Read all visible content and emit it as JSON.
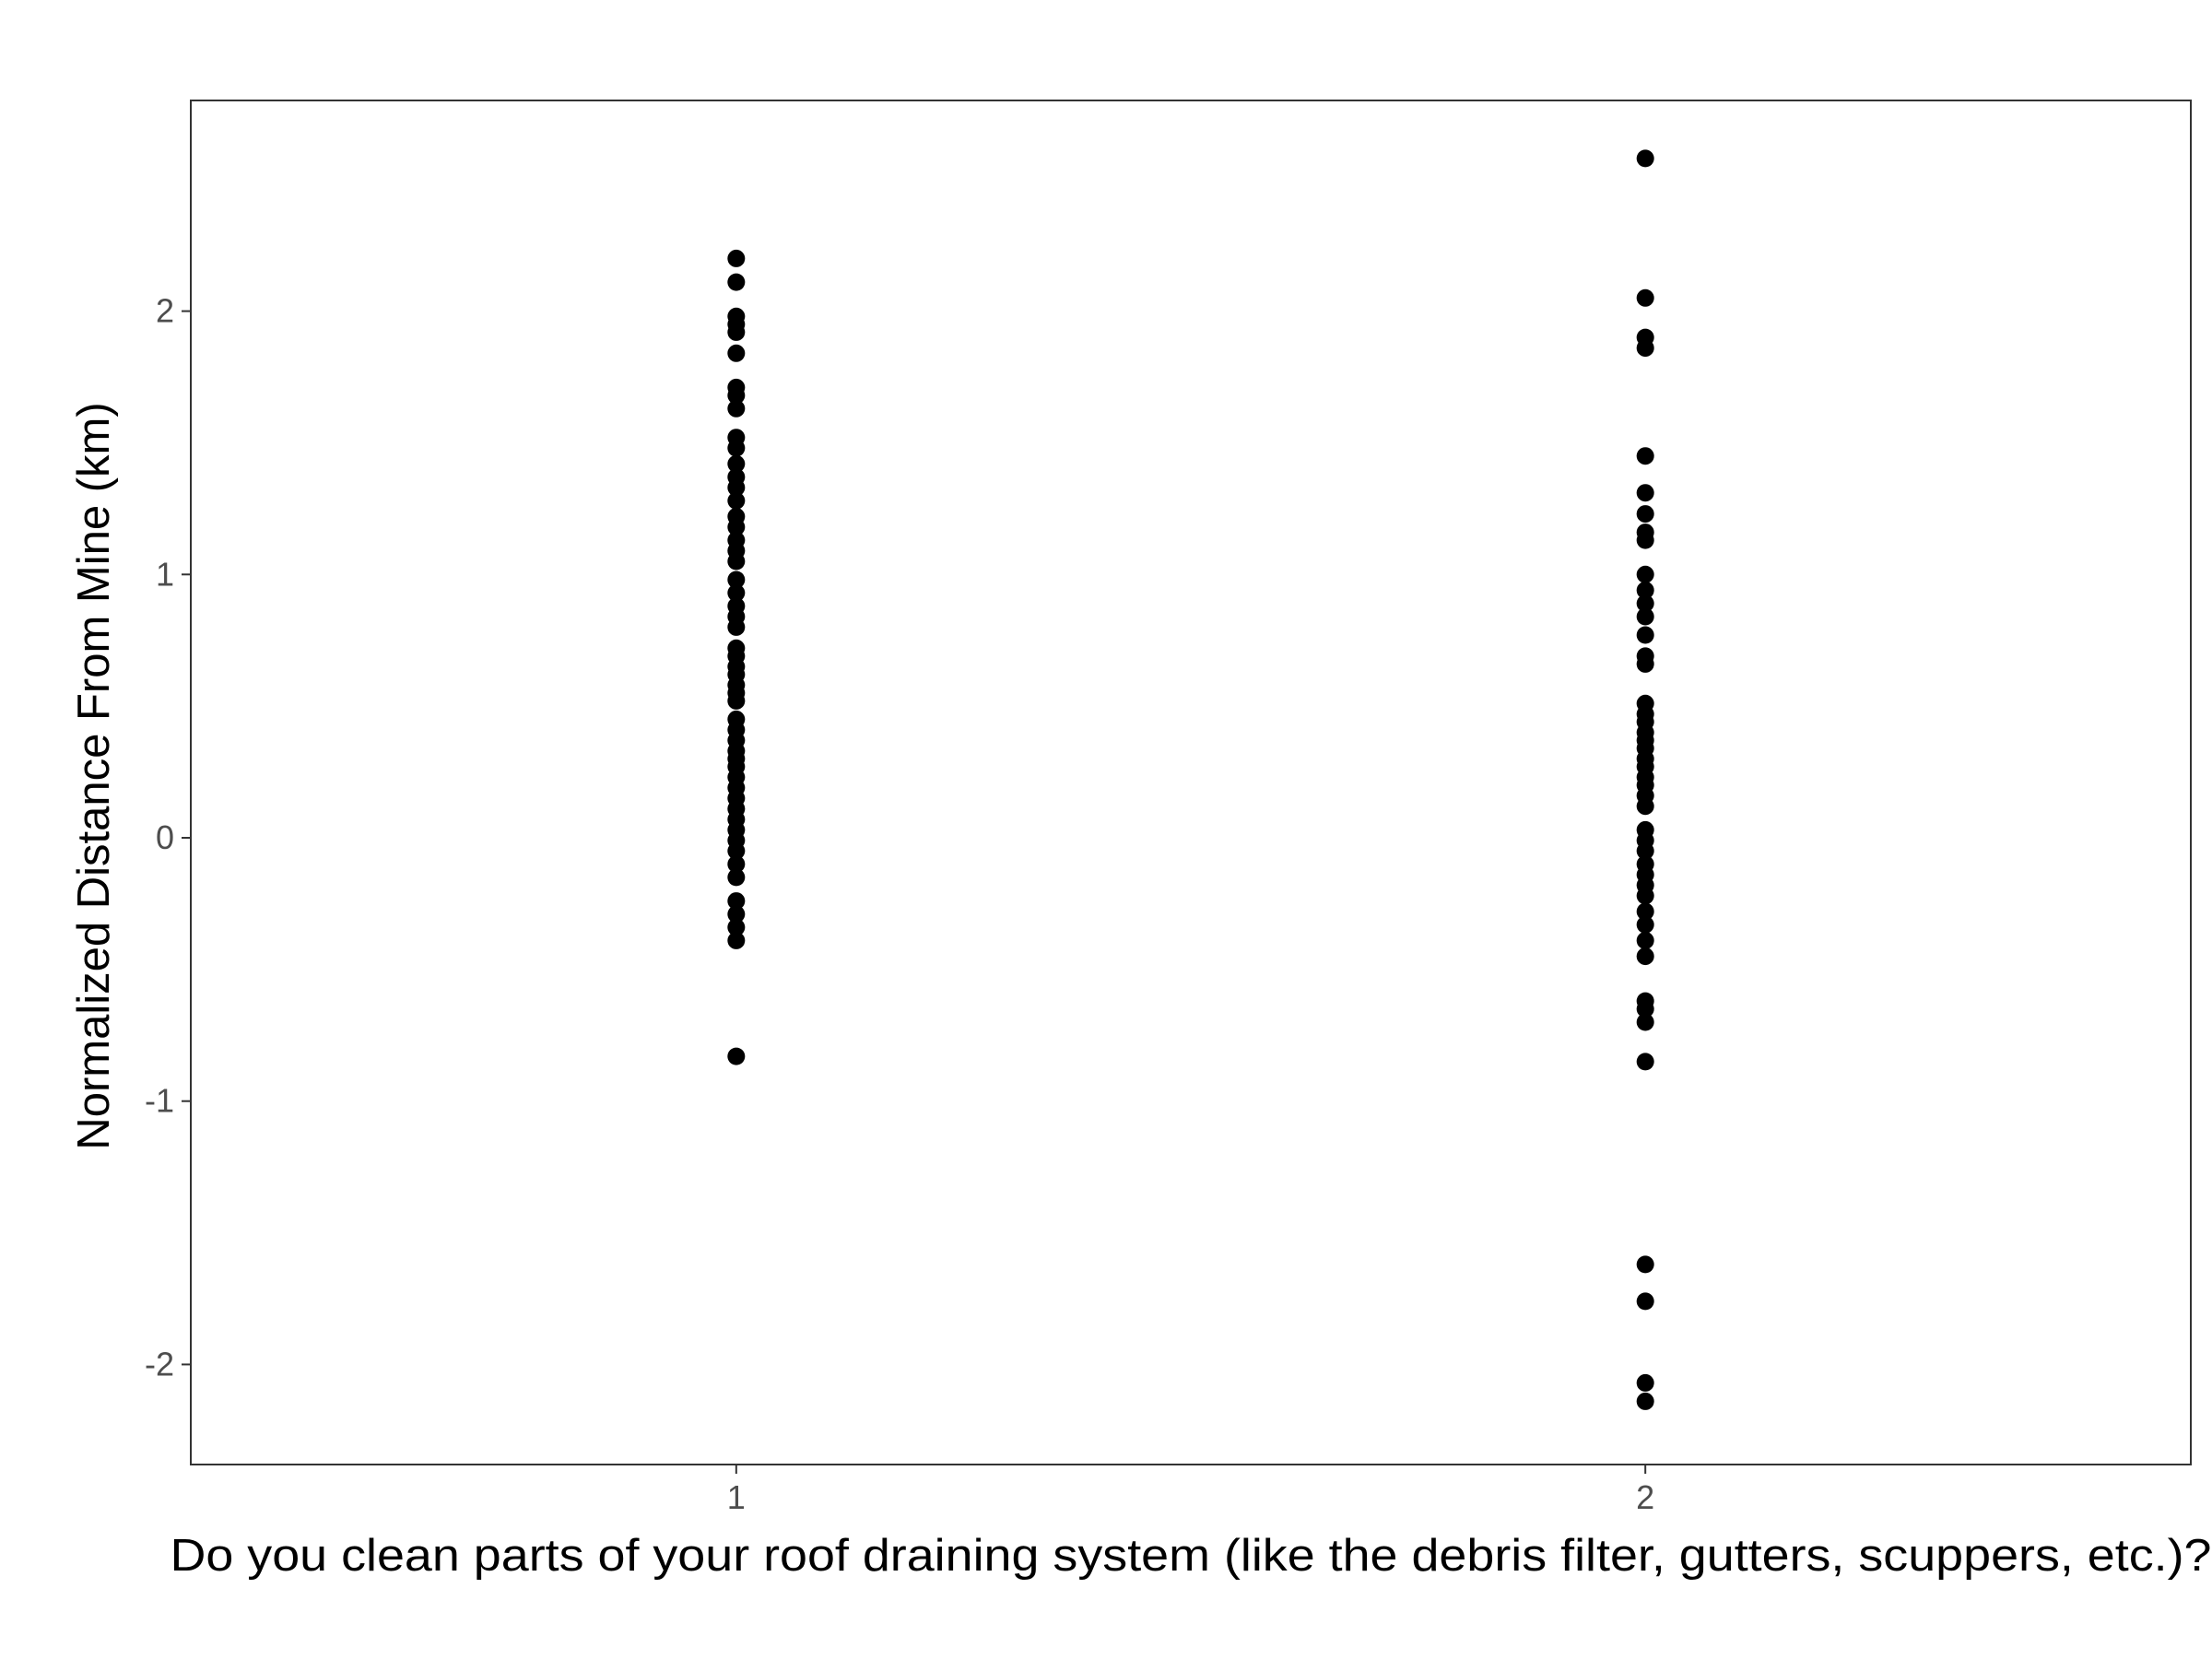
{
  "chart_data": {
    "type": "scatter",
    "title": "",
    "xlabel": "Do you clean parts of your roof draining system (like the debris filter, gutters, scuppers, etc.)?",
    "ylabel": "Normalized Distance From Mine (km)",
    "categories": [
      "1",
      "2"
    ],
    "y_ticks": [
      -2,
      -1,
      0,
      1,
      2
    ],
    "y_tick_labels": [
      "-2",
      "-1",
      "0",
      "1",
      "2"
    ],
    "ylim": [
      -2.38,
      2.8
    ],
    "xlim": [
      0.4,
      2.6
    ],
    "grid": false,
    "legend": "none",
    "colors": {
      "points": "#000000",
      "panel_border": "#333333",
      "tick_text": "#4d4d4d"
    },
    "series": [
      {
        "category": "1",
        "x": 1,
        "y": [
          2.2,
          2.11,
          1.98,
          1.95,
          1.92,
          1.84,
          1.71,
          1.68,
          1.63,
          1.52,
          1.48,
          1.42,
          1.37,
          1.33,
          1.28,
          1.22,
          1.18,
          1.13,
          1.09,
          1.05,
          0.98,
          0.93,
          0.88,
          0.84,
          0.8,
          0.72,
          0.69,
          0.65,
          0.62,
          0.58,
          0.55,
          0.52,
          0.45,
          0.41,
          0.37,
          0.33,
          0.3,
          0.27,
          0.23,
          0.19,
          0.15,
          0.11,
          0.07,
          0.03,
          -0.01,
          -0.05,
          -0.1,
          -0.15,
          -0.24,
          -0.29,
          -0.34,
          -0.39,
          -0.83
        ]
      },
      {
        "category": "2",
        "x": 2,
        "y": [
          2.58,
          2.05,
          1.9,
          1.86,
          1.45,
          1.31,
          1.23,
          1.16,
          1.13,
          1.0,
          0.94,
          0.89,
          0.84,
          0.77,
          0.69,
          0.66,
          0.51,
          0.47,
          0.44,
          0.4,
          0.37,
          0.34,
          0.3,
          0.27,
          0.23,
          0.2,
          0.16,
          0.12,
          0.03,
          -0.01,
          -0.05,
          -0.1,
          -0.14,
          -0.18,
          -0.22,
          -0.28,
          -0.33,
          -0.39,
          -0.45,
          -0.62,
          -0.65,
          -0.7,
          -0.85,
          -1.62,
          -1.76,
          -2.07,
          -2.14
        ]
      }
    ]
  }
}
